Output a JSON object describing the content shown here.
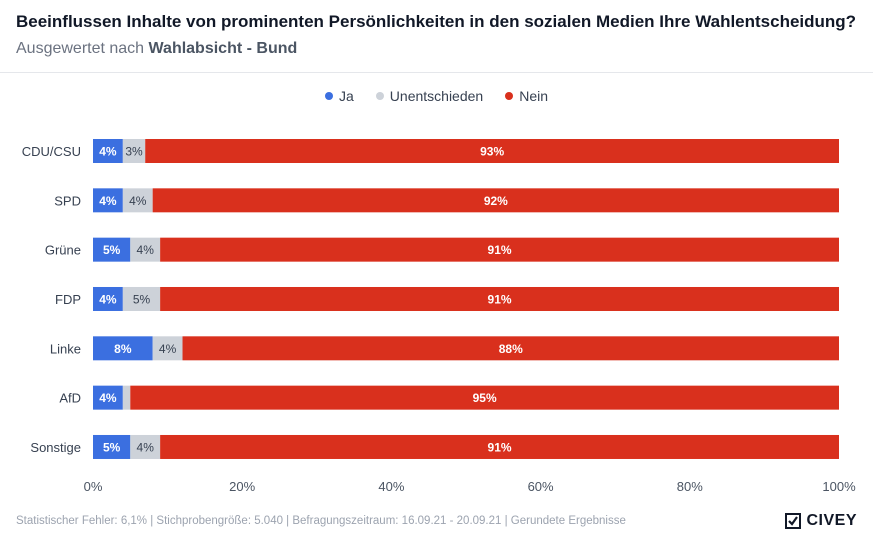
{
  "header": {
    "title": "Beeinflussen Inhalte von prominenten Persönlichkeiten in den sozialen Medien Ihre Wahlentscheidung?",
    "subtitle_prefix": "Ausgewertet nach",
    "subtitle_group": "Wahlabsicht - Bund"
  },
  "colors": {
    "ja": "#3b6fe0",
    "unentschieden": "#cdd2d9",
    "nein": "#d9301d"
  },
  "chart_data": {
    "type": "bar",
    "orientation": "horizontal",
    "stacked": true,
    "title": "Beeinflussen Inhalte von prominenten Persönlichkeiten in den sozialen Medien Ihre Wahlentscheidung?",
    "categories": [
      "CDU/CSU",
      "SPD",
      "Grüne",
      "FDP",
      "Linke",
      "AfD",
      "Sonstige"
    ],
    "series": [
      {
        "name": "Ja",
        "values": [
          4,
          4,
          5,
          4,
          8,
          4,
          5
        ],
        "labels": [
          "4%",
          "4%",
          "5%",
          "4%",
          "8%",
          "4%",
          "5%"
        ]
      },
      {
        "name": "Unentschieden",
        "values": [
          3,
          4,
          4,
          5,
          4,
          1,
          4
        ],
        "labels": [
          "3%",
          "4%",
          "4%",
          "5%",
          "4%",
          "",
          "4%"
        ]
      },
      {
        "name": "Nein",
        "values": [
          93,
          92,
          91,
          91,
          88,
          95,
          91
        ],
        "labels": [
          "93%",
          "92%",
          "91%",
          "91%",
          "88%",
          "95%",
          "91%"
        ]
      }
    ],
    "xlim": [
      0,
      100
    ],
    "xticks": [
      "0%",
      "20%",
      "40%",
      "60%",
      "80%",
      "100%"
    ],
    "legend_position": "top-center"
  },
  "footer": {
    "text": "Statistischer Fehler: 6,1% | Stichprobengröße: 5.040 | Befragungszeitraum: 16.09.21 - 20.09.21 | Gerundete Ergebnisse",
    "brand": "CIVEY"
  }
}
